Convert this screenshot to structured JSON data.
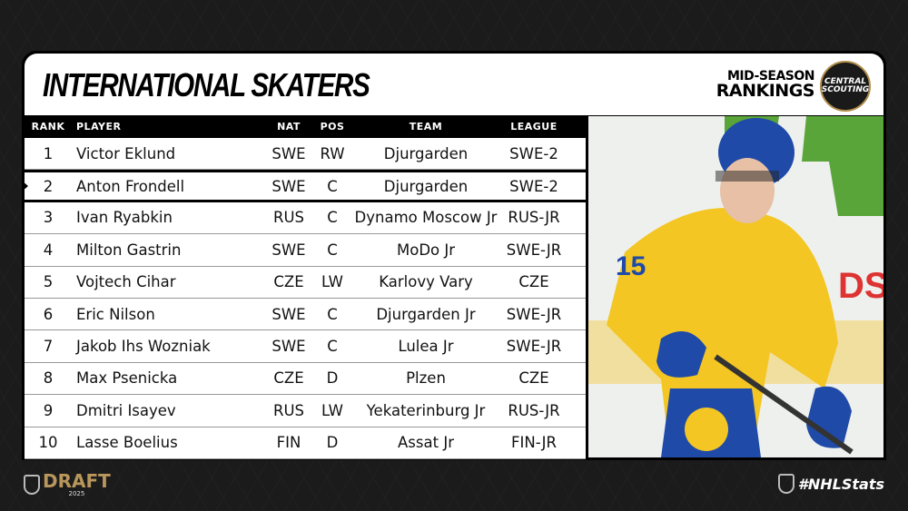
{
  "header": {
    "title": "INTERNATIONAL SKATERS",
    "subtitle_line1": "MID-SEASON",
    "subtitle_line2": "RANKINGS",
    "logo_text": "CENTRAL SCOUTING"
  },
  "table": {
    "columns": [
      "RANK",
      "PLAYER",
      "NAT",
      "POS",
      "TEAM",
      "LEAGUE"
    ],
    "selected_rank": 2,
    "rows": [
      {
        "rank": "1",
        "player": "Victor Eklund",
        "nat": "SWE",
        "pos": "RW",
        "team": "Djurgarden",
        "league": "SWE-2"
      },
      {
        "rank": "2",
        "player": "Anton Frondell",
        "nat": "SWE",
        "pos": "C",
        "team": "Djurgarden",
        "league": "SWE-2"
      },
      {
        "rank": "3",
        "player": "Ivan Ryabkin",
        "nat": "RUS",
        "pos": "C",
        "team": "Dynamo Moscow Jr",
        "league": "RUS-JR"
      },
      {
        "rank": "4",
        "player": "Milton Gastrin",
        "nat": "SWE",
        "pos": "C",
        "team": "MoDo Jr",
        "league": "SWE-JR"
      },
      {
        "rank": "5",
        "player": "Vojtech Cihar",
        "nat": "CZE",
        "pos": "LW",
        "team": "Karlovy Vary",
        "league": "CZE"
      },
      {
        "rank": "6",
        "player": "Eric Nilson",
        "nat": "SWE",
        "pos": "C",
        "team": "Djurgarden Jr",
        "league": "SWE-JR"
      },
      {
        "rank": "7",
        "player": "Jakob Ihs Wozniak",
        "nat": "SWE",
        "pos": "C",
        "team": "Lulea Jr",
        "league": "SWE-JR"
      },
      {
        "rank": "8",
        "player": "Max Psenicka",
        "nat": "CZE",
        "pos": "D",
        "team": "Plzen",
        "league": "CZE"
      },
      {
        "rank": "9",
        "player": "Dmitri Isayev",
        "nat": "RUS",
        "pos": "LW",
        "team": "Yekaterinburg Jr",
        "league": "RUS-JR"
      },
      {
        "rank": "10",
        "player": "Lasse Boelius",
        "nat": "FIN",
        "pos": "D",
        "team": "Assat Jr",
        "league": "FIN-JR"
      }
    ]
  },
  "photo": {
    "jersey_number": "15"
  },
  "footer": {
    "draft_label": "DRAFT",
    "draft_year": "2025",
    "hashtag": "#NHLStats"
  },
  "colors": {
    "gold": "#b9965b",
    "jersey_yellow": "#f3c623",
    "jersey_blue": "#1f4aa8",
    "background": "#1b1b1b"
  }
}
